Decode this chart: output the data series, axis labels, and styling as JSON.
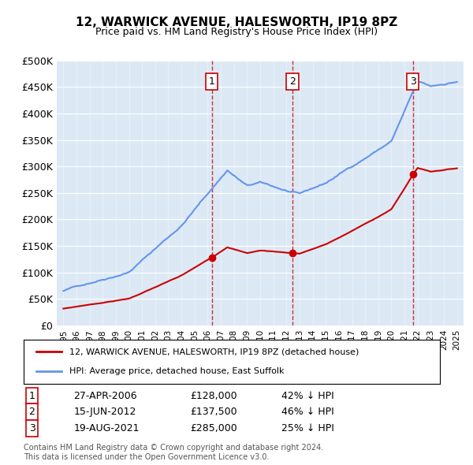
{
  "title": "12, WARWICK AVENUE, HALESWORTH, IP19 8PZ",
  "subtitle": "Price paid vs. HM Land Registry's House Price Index (HPI)",
  "ylabel_ticks": [
    "£0",
    "£50K",
    "£100K",
    "£150K",
    "£200K",
    "£250K",
    "£300K",
    "£350K",
    "£400K",
    "£450K",
    "£500K"
  ],
  "ytick_values": [
    0,
    50000,
    100000,
    150000,
    200000,
    250000,
    300000,
    350000,
    400000,
    450000,
    500000
  ],
  "hpi_color": "#6495ED",
  "price_color": "#CC0000",
  "sale_color": "#CC0000",
  "vline_color": "#CC0000",
  "sales": [
    {
      "date_num": 2006.32,
      "price": 128000,
      "label": "1"
    },
    {
      "date_num": 2012.46,
      "price": 137500,
      "label": "2"
    },
    {
      "date_num": 2021.63,
      "price": 285000,
      "label": "3"
    }
  ],
  "sale_table": [
    {
      "num": "1",
      "date": "27-APR-2006",
      "price": "£128,000",
      "pct": "42% ↓ HPI"
    },
    {
      "num": "2",
      "date": "15-JUN-2012",
      "price": "£137,500",
      "pct": "46% ↓ HPI"
    },
    {
      "num": "3",
      "date": "19-AUG-2021",
      "price": "£285,000",
      "pct": "25% ↓ HPI"
    }
  ],
  "legend_entries": [
    "12, WARWICK AVENUE, HALESWORTH, IP19 8PZ (detached house)",
    "HPI: Average price, detached house, East Suffolk"
  ],
  "footnote": "Contains HM Land Registry data © Crown copyright and database right 2024.\nThis data is licensed under the Open Government Licence v3.0.",
  "xlim": [
    1994.5,
    2025.5
  ],
  "ylim": [
    0,
    500000
  ],
  "background_color": "#dce9f5"
}
